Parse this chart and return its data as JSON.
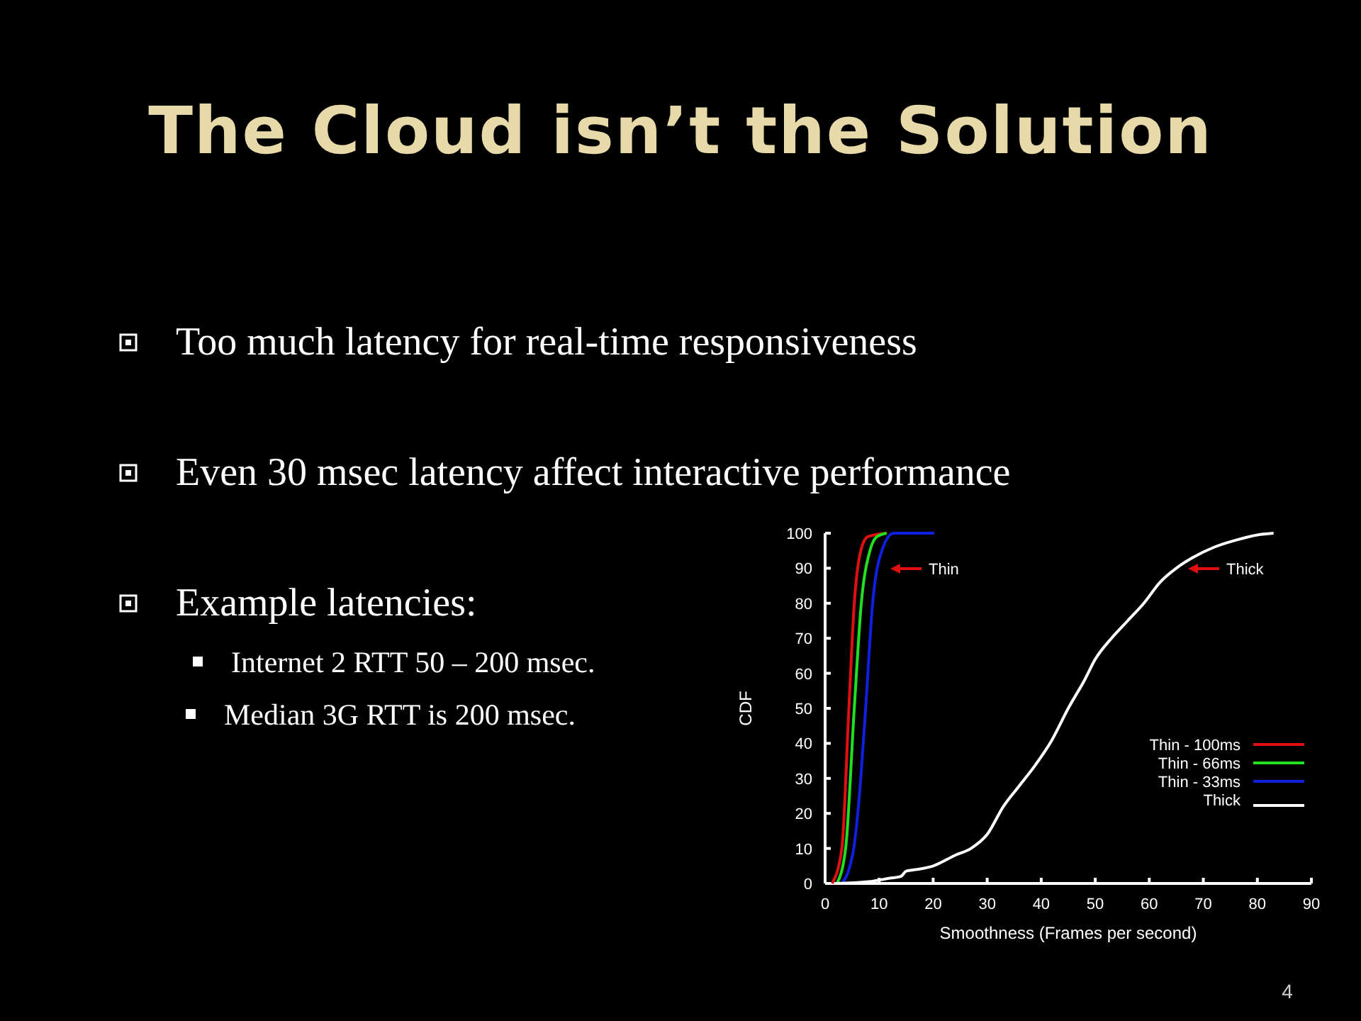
{
  "chart_data": {
    "type": "line",
    "title": "The Cloud isn’t the Solution",
    "xlabel": "Smoothness (Frames per second)",
    "ylabel": "CDF",
    "xlim": [
      0,
      90
    ],
    "xticks": [
      0,
      10,
      20,
      30,
      40,
      50,
      60,
      70,
      80,
      90
    ],
    "ylim": [
      0,
      100
    ],
    "yticks": [
      0,
      10,
      20,
      30,
      40,
      50,
      60,
      70,
      80,
      90,
      100
    ],
    "legend": "bottom right",
    "grid": false,
    "marker": "none",
    "line_style": "solid",
    "series": [
      {
        "name": "Thin - 100ms",
        "color": "#e01010",
        "x": [
          1.3,
          3.1,
          4.4,
          5.4,
          6.6,
          7.9,
          11.4
        ],
        "values": [
          0,
          10,
          50,
          80,
          95,
          99,
          100
        ]
      },
      {
        "name": "Thin - 66ms",
        "color": "#20e020",
        "x": [
          2.2,
          3.8,
          5.4,
          6.7,
          8.3,
          9.6,
          11.4
        ],
        "values": [
          0,
          10,
          50,
          80,
          95,
          99,
          100
        ]
      },
      {
        "name": "Thin - 33ms",
        "color": "#1020e0",
        "x": [
          3.1,
          4.6,
          5.3,
          6.6,
          7.5,
          8.8,
          10.5,
          12.7,
          20.2
        ],
        "values": [
          0,
          5,
          10,
          30,
          50,
          80,
          95,
          100,
          100
        ]
      },
      {
        "name": "Thick",
        "color": "#ffffff",
        "x": [
          2,
          8,
          12,
          14,
          15,
          17,
          20,
          24,
          27,
          30,
          33,
          36,
          39,
          42,
          45,
          48,
          50,
          53,
          56,
          59,
          62,
          65,
          68,
          72,
          76,
          80,
          83
        ],
        "values": [
          0,
          0.5,
          1.5,
          2,
          3.5,
          4,
          5,
          8,
          10,
          14,
          22,
          28,
          34,
          41,
          50,
          58,
          64,
          70,
          75,
          80,
          86,
          90,
          93,
          96,
          98,
          99.5,
          100
        ]
      }
    ],
    "annotations": [
      "Too much latency for real-time responsiveness",
      "Even 30 msec latency affect interactive performance",
      "Example latencies:",
      "Internet 2 RTT 50 – 200 msec.",
      "Median 3G RTT is 200 msec.",
      "Thin",
      "Thick",
      "4"
    ]
  }
}
